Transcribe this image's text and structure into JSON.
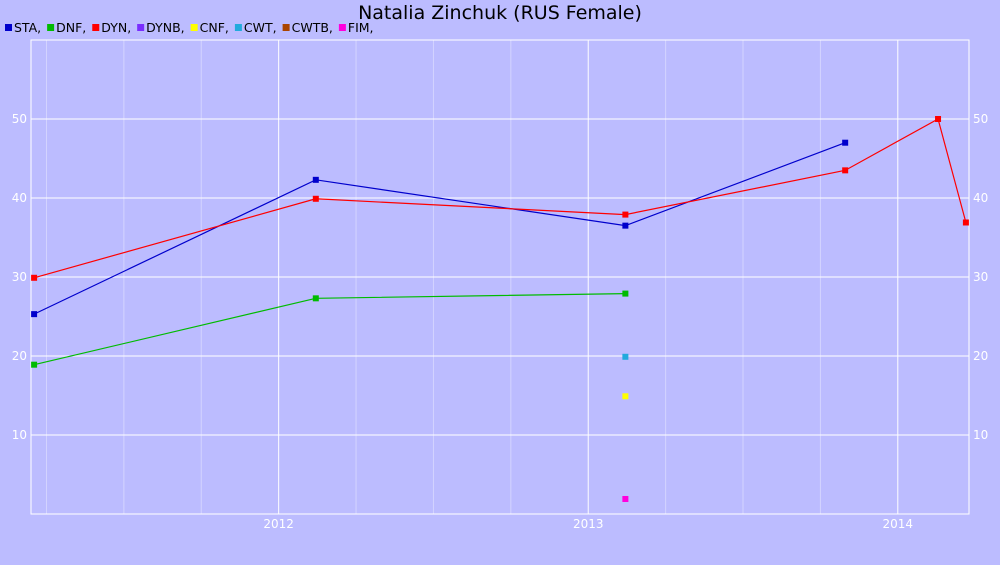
{
  "chart_data": {
    "type": "line",
    "title": "Natalia Zinchuk (RUS Female)",
    "xlabel": "",
    "ylabel": "",
    "x_ticks": [
      "2012",
      "2013",
      "2014"
    ],
    "y_ticks": [
      10,
      20,
      30,
      40,
      50
    ],
    "xlim": [
      2011.2,
      2014.23
    ],
    "ylim": [
      0,
      60
    ],
    "grid": true,
    "legend_position": "top-left",
    "series": [
      {
        "name": "STA",
        "color": "#0000cc",
        "points": [
          [
            2011.21,
            25.3
          ],
          [
            2012.12,
            42.3
          ],
          [
            2013.12,
            36.5
          ],
          [
            2013.83,
            47.0
          ]
        ]
      },
      {
        "name": "DNF",
        "color": "#00bb00",
        "points": [
          [
            2011.21,
            18.9
          ],
          [
            2012.12,
            27.3
          ],
          [
            2013.12,
            27.9
          ]
        ]
      },
      {
        "name": "DYN",
        "color": "#ff0000",
        "points": [
          [
            2011.21,
            29.9
          ],
          [
            2012.12,
            39.9
          ],
          [
            2013.12,
            37.9
          ],
          [
            2013.83,
            43.5
          ],
          [
            2014.13,
            50.0
          ],
          [
            2014.22,
            36.9
          ]
        ]
      },
      {
        "name": "DYNB",
        "color": "#7a2dff",
        "points": []
      },
      {
        "name": "CNF",
        "color": "#ffff00",
        "points": [
          [
            2013.12,
            14.9
          ]
        ]
      },
      {
        "name": "CWT",
        "color": "#22aadd",
        "points": [
          [
            2013.12,
            19.9
          ]
        ]
      },
      {
        "name": "CWTB",
        "color": "#aa4400",
        "points": []
      },
      {
        "name": "FIM",
        "color": "#ff00dd",
        "points": [
          [
            2013.12,
            1.9
          ]
        ]
      }
    ]
  }
}
